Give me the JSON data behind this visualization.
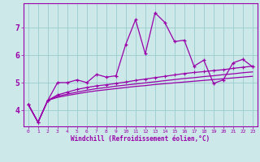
{
  "x": [
    0,
    1,
    2,
    3,
    4,
    5,
    6,
    7,
    8,
    9,
    10,
    11,
    12,
    13,
    14,
    15,
    16,
    17,
    18,
    19,
    20,
    21,
    22,
    23
  ],
  "line1": [
    4.2,
    3.55,
    4.35,
    5.0,
    5.0,
    5.1,
    5.0,
    5.3,
    5.2,
    5.25,
    6.4,
    7.3,
    6.05,
    7.55,
    7.2,
    6.5,
    6.55,
    5.6,
    5.82,
    4.97,
    5.1,
    5.72,
    5.85,
    5.58
  ],
  "line2": [
    4.2,
    3.55,
    4.35,
    4.55,
    4.65,
    4.75,
    4.82,
    4.88,
    4.92,
    4.97,
    5.02,
    5.08,
    5.13,
    5.18,
    5.23,
    5.28,
    5.33,
    5.37,
    5.4,
    5.44,
    5.47,
    5.52,
    5.56,
    5.6
  ],
  "line3": [
    4.2,
    3.55,
    4.35,
    4.5,
    4.58,
    4.65,
    4.72,
    4.78,
    4.82,
    4.87,
    4.91,
    4.95,
    4.99,
    5.03,
    5.07,
    5.11,
    5.15,
    5.18,
    5.22,
    5.25,
    5.29,
    5.32,
    5.36,
    5.39
  ],
  "line4": [
    4.2,
    3.55,
    4.35,
    4.46,
    4.53,
    4.59,
    4.65,
    4.7,
    4.74,
    4.78,
    4.82,
    4.86,
    4.89,
    4.93,
    4.96,
    4.99,
    5.02,
    5.05,
    5.08,
    5.11,
    5.14,
    5.17,
    5.2,
    5.23
  ],
  "line_color": "#9900aa",
  "bg_color": "#cce8e8",
  "grid_color": "#99cccc",
  "xlabel": "Windchill (Refroidissement éolien,°C)",
  "ylim": [
    3.4,
    7.9
  ],
  "xlim": [
    -0.5,
    23.5
  ],
  "yticks": [
    4,
    5,
    6,
    7
  ],
  "xticks": [
    0,
    1,
    2,
    3,
    4,
    5,
    6,
    7,
    8,
    9,
    10,
    11,
    12,
    13,
    14,
    15,
    16,
    17,
    18,
    19,
    20,
    21,
    22,
    23
  ]
}
